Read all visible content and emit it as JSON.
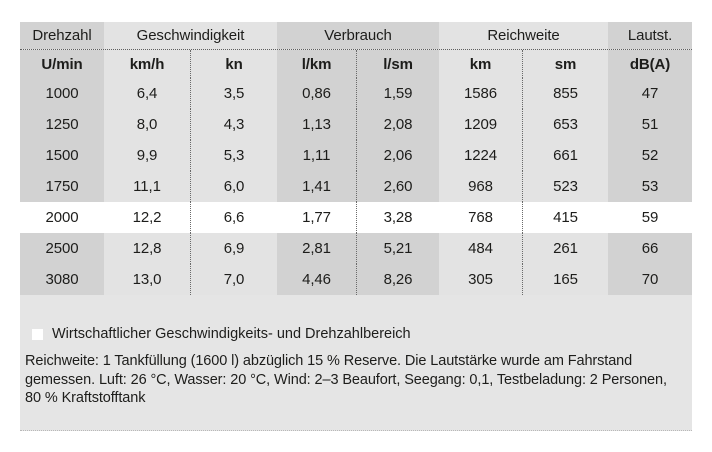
{
  "chart_data": {
    "type": "table",
    "column_groups": [
      {
        "label": "Drehzahl",
        "span": 1
      },
      {
        "label": "Geschwindigkeit",
        "span": 2
      },
      {
        "label": "Verbrauch",
        "span": 2
      },
      {
        "label": "Reichweite",
        "span": 2
      },
      {
        "label": "Lautst.",
        "span": 1
      }
    ],
    "columns": [
      "U/min",
      "km/h",
      "kn",
      "l/km",
      "l/sm",
      "km",
      "sm",
      "dB(A)"
    ],
    "column_shading": [
      "dark",
      "light",
      "light",
      "dark",
      "dark",
      "light",
      "light",
      "dark"
    ],
    "divider_after_columns": [
      1,
      3,
      5
    ],
    "rows": [
      {
        "cells": [
          "1000",
          "6,4",
          "3,5",
          "0,86",
          "1,59",
          "1586",
          "855",
          "47"
        ],
        "highlight": false
      },
      {
        "cells": [
          "1250",
          "8,0",
          "4,3",
          "1,13",
          "2,08",
          "1209",
          "653",
          "51"
        ],
        "highlight": false
      },
      {
        "cells": [
          "1500",
          "9,9",
          "5,3",
          "1,11",
          "2,06",
          "1224",
          "661",
          "52"
        ],
        "highlight": false
      },
      {
        "cells": [
          "1750",
          "11,1",
          "6,0",
          "1,41",
          "2,60",
          "968",
          "523",
          "53"
        ],
        "highlight": false
      },
      {
        "cells": [
          "2000",
          "12,2",
          "6,6",
          "1,77",
          "3,28",
          "768",
          "415",
          "59"
        ],
        "highlight": true
      },
      {
        "cells": [
          "2500",
          "12,8",
          "6,9",
          "2,81",
          "5,21",
          "484",
          "261",
          "66"
        ],
        "highlight": false
      },
      {
        "cells": [
          "3080",
          "13,0",
          "7,0",
          "4,46",
          "8,26",
          "305",
          "165",
          "70"
        ],
        "highlight": false
      }
    ],
    "highlight_meaning": "Wirtschaftlicher Geschwindigkeits- und Drehzahlbereich"
  },
  "legend": {
    "label": "Wirtschaftlicher Geschwindigkeits- und Drehzahlbereich",
    "marker_color": "#ffffff"
  },
  "notes": "Reichweite: 1 Tankfüllung (1600 l) abzüglich 15 % Reserve. Die Lautstärke wurde am Fahrstand gemessen. Luft: 26 °C, Wasser: 20 °C, Wind: 2–3 Beaufort, Seegang: 0,1, Testbeladung: 2 Personen, 80 % Kraftstofftank",
  "colors": {
    "column_dark": "#d2d2d2",
    "column_light": "#e3e3e3",
    "panel_background": "#e5e5e5",
    "highlight_row": "#ffffff",
    "text": "#1d1d1b"
  }
}
